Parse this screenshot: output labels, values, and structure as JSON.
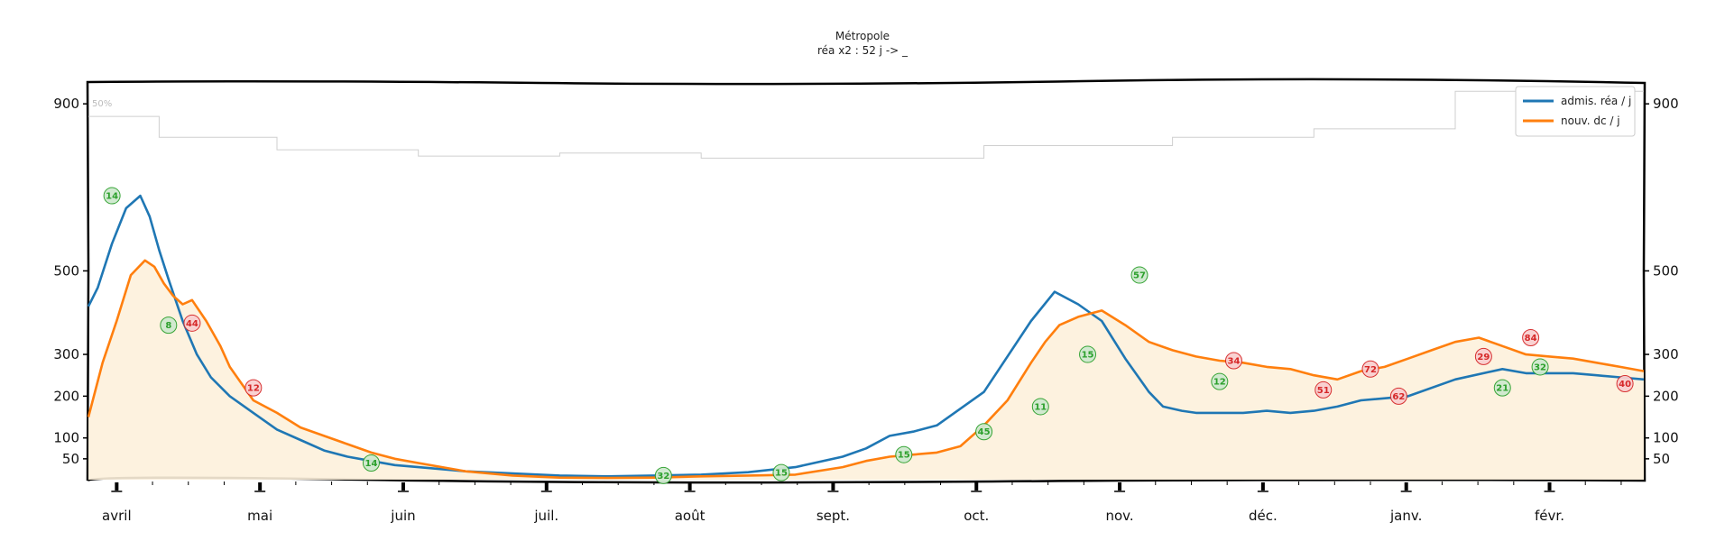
{
  "chart_data": {
    "type": "line",
    "title": "Métropole",
    "subtitle": "réa x2 : 52 j -> _",
    "y_ticks": [
      50,
      100,
      200,
      300,
      500,
      900
    ],
    "ylim": [
      0,
      950
    ],
    "x_months": [
      "avril",
      "mai",
      "juin",
      "juil.",
      "août",
      "sept.",
      "oct.",
      "nov.",
      "déc.",
      "janv.",
      "févr."
    ],
    "x_range_days": [
      0,
      330
    ],
    "percent_label": "50%",
    "legend": [
      {
        "name": "admis. réa / j",
        "color": "#1f77b4"
      },
      {
        "name": "nouv. dc / j",
        "color": "#ff7f0e"
      }
    ],
    "trend_colors": {
      "up": "#2ca02c",
      "down": "#d62728"
    },
    "series": [
      {
        "name": "admis. réa / j",
        "color": "#1f77b4",
        "x": [
          0,
          2,
          5,
          8,
          11,
          13,
          15,
          17,
          20,
          23,
          26,
          30,
          35,
          40,
          45,
          50,
          55,
          60,
          65,
          70,
          80,
          90,
          100,
          110,
          120,
          130,
          140,
          150,
          160,
          165,
          170,
          175,
          180,
          190,
          200,
          205,
          210,
          215,
          220,
          225,
          228,
          232,
          235,
          240,
          245,
          250,
          255,
          260,
          265,
          270,
          280,
          290,
          300,
          305,
          310,
          315,
          320,
          325,
          330
        ],
        "values": [
          415,
          460,
          565,
          650,
          680,
          630,
          550,
          480,
          380,
          300,
          245,
          200,
          160,
          120,
          95,
          70,
          55,
          45,
          35,
          30,
          20,
          15,
          10,
          8,
          10,
          12,
          18,
          30,
          55,
          75,
          105,
          115,
          130,
          210,
          380,
          450,
          420,
          380,
          290,
          210,
          175,
          165,
          160,
          160,
          160,
          165,
          160,
          165,
          175,
          190,
          200,
          240,
          265,
          255,
          255,
          255,
          250,
          245,
          240
        ]
      },
      {
        "name": "nouv. dc / j",
        "color": "#ff7f0e",
        "x": [
          0,
          3,
          6,
          9,
          12,
          14,
          16,
          18,
          20,
          22,
          25,
          28,
          30,
          35,
          40,
          45,
          50,
          55,
          60,
          65,
          70,
          80,
          90,
          100,
          110,
          120,
          130,
          140,
          150,
          160,
          165,
          170,
          175,
          180,
          185,
          190,
          195,
          200,
          203,
          206,
          210,
          215,
          220,
          225,
          230,
          235,
          240,
          245,
          250,
          255,
          260,
          265,
          270,
          275,
          280,
          285,
          290,
          295,
          300,
          305,
          310,
          315,
          320,
          325,
          330
        ],
        "values": [
          150,
          280,
          380,
          490,
          525,
          510,
          470,
          440,
          420,
          430,
          380,
          320,
          270,
          190,
          160,
          125,
          105,
          85,
          65,
          50,
          40,
          20,
          10,
          5,
          4,
          5,
          8,
          10,
          12,
          30,
          45,
          55,
          60,
          65,
          80,
          130,
          190,
          280,
          330,
          370,
          390,
          405,
          370,
          330,
          310,
          295,
          285,
          280,
          270,
          265,
          250,
          240,
          260,
          270,
          290,
          310,
          330,
          340,
          320,
          300,
          295,
          290,
          280,
          270,
          260
        ]
      }
    ],
    "up_badges": [
      {
        "x": 5,
        "y": 680,
        "label": "14"
      },
      {
        "x": 17,
        "y": 370,
        "label": "8"
      },
      {
        "x": 60,
        "y": 40,
        "label": "14"
      },
      {
        "x": 122,
        "y": 10,
        "label": "32"
      },
      {
        "x": 147,
        "y": 17,
        "label": "15"
      },
      {
        "x": 173,
        "y": 60,
        "label": "15"
      },
      {
        "x": 190,
        "y": 115,
        "label": "45"
      },
      {
        "x": 202,
        "y": 175,
        "label": "11"
      },
      {
        "x": 212,
        "y": 300,
        "label": "15"
      },
      {
        "x": 223,
        "y": 490,
        "label": "57"
      },
      {
        "x": 240,
        "y": 235,
        "label": "12"
      },
      {
        "x": 300,
        "y": 220,
        "label": "21"
      },
      {
        "x": 308,
        "y": 270,
        "label": "32"
      }
    ],
    "down_badges": [
      {
        "x": 22,
        "y": 375,
        "label": "44"
      },
      {
        "x": 35,
        "y": 220,
        "label": "12"
      },
      {
        "x": 243,
        "y": 285,
        "label": "34"
      },
      {
        "x": 262,
        "y": 215,
        "label": "51"
      },
      {
        "x": 272,
        "y": 265,
        "label": "72"
      },
      {
        "x": 278,
        "y": 200,
        "label": "62"
      },
      {
        "x": 296,
        "y": 295,
        "label": "29"
      },
      {
        "x": 306,
        "y": 340,
        "label": "84"
      },
      {
        "x": 326,
        "y": 230,
        "label": "40"
      }
    ]
  }
}
